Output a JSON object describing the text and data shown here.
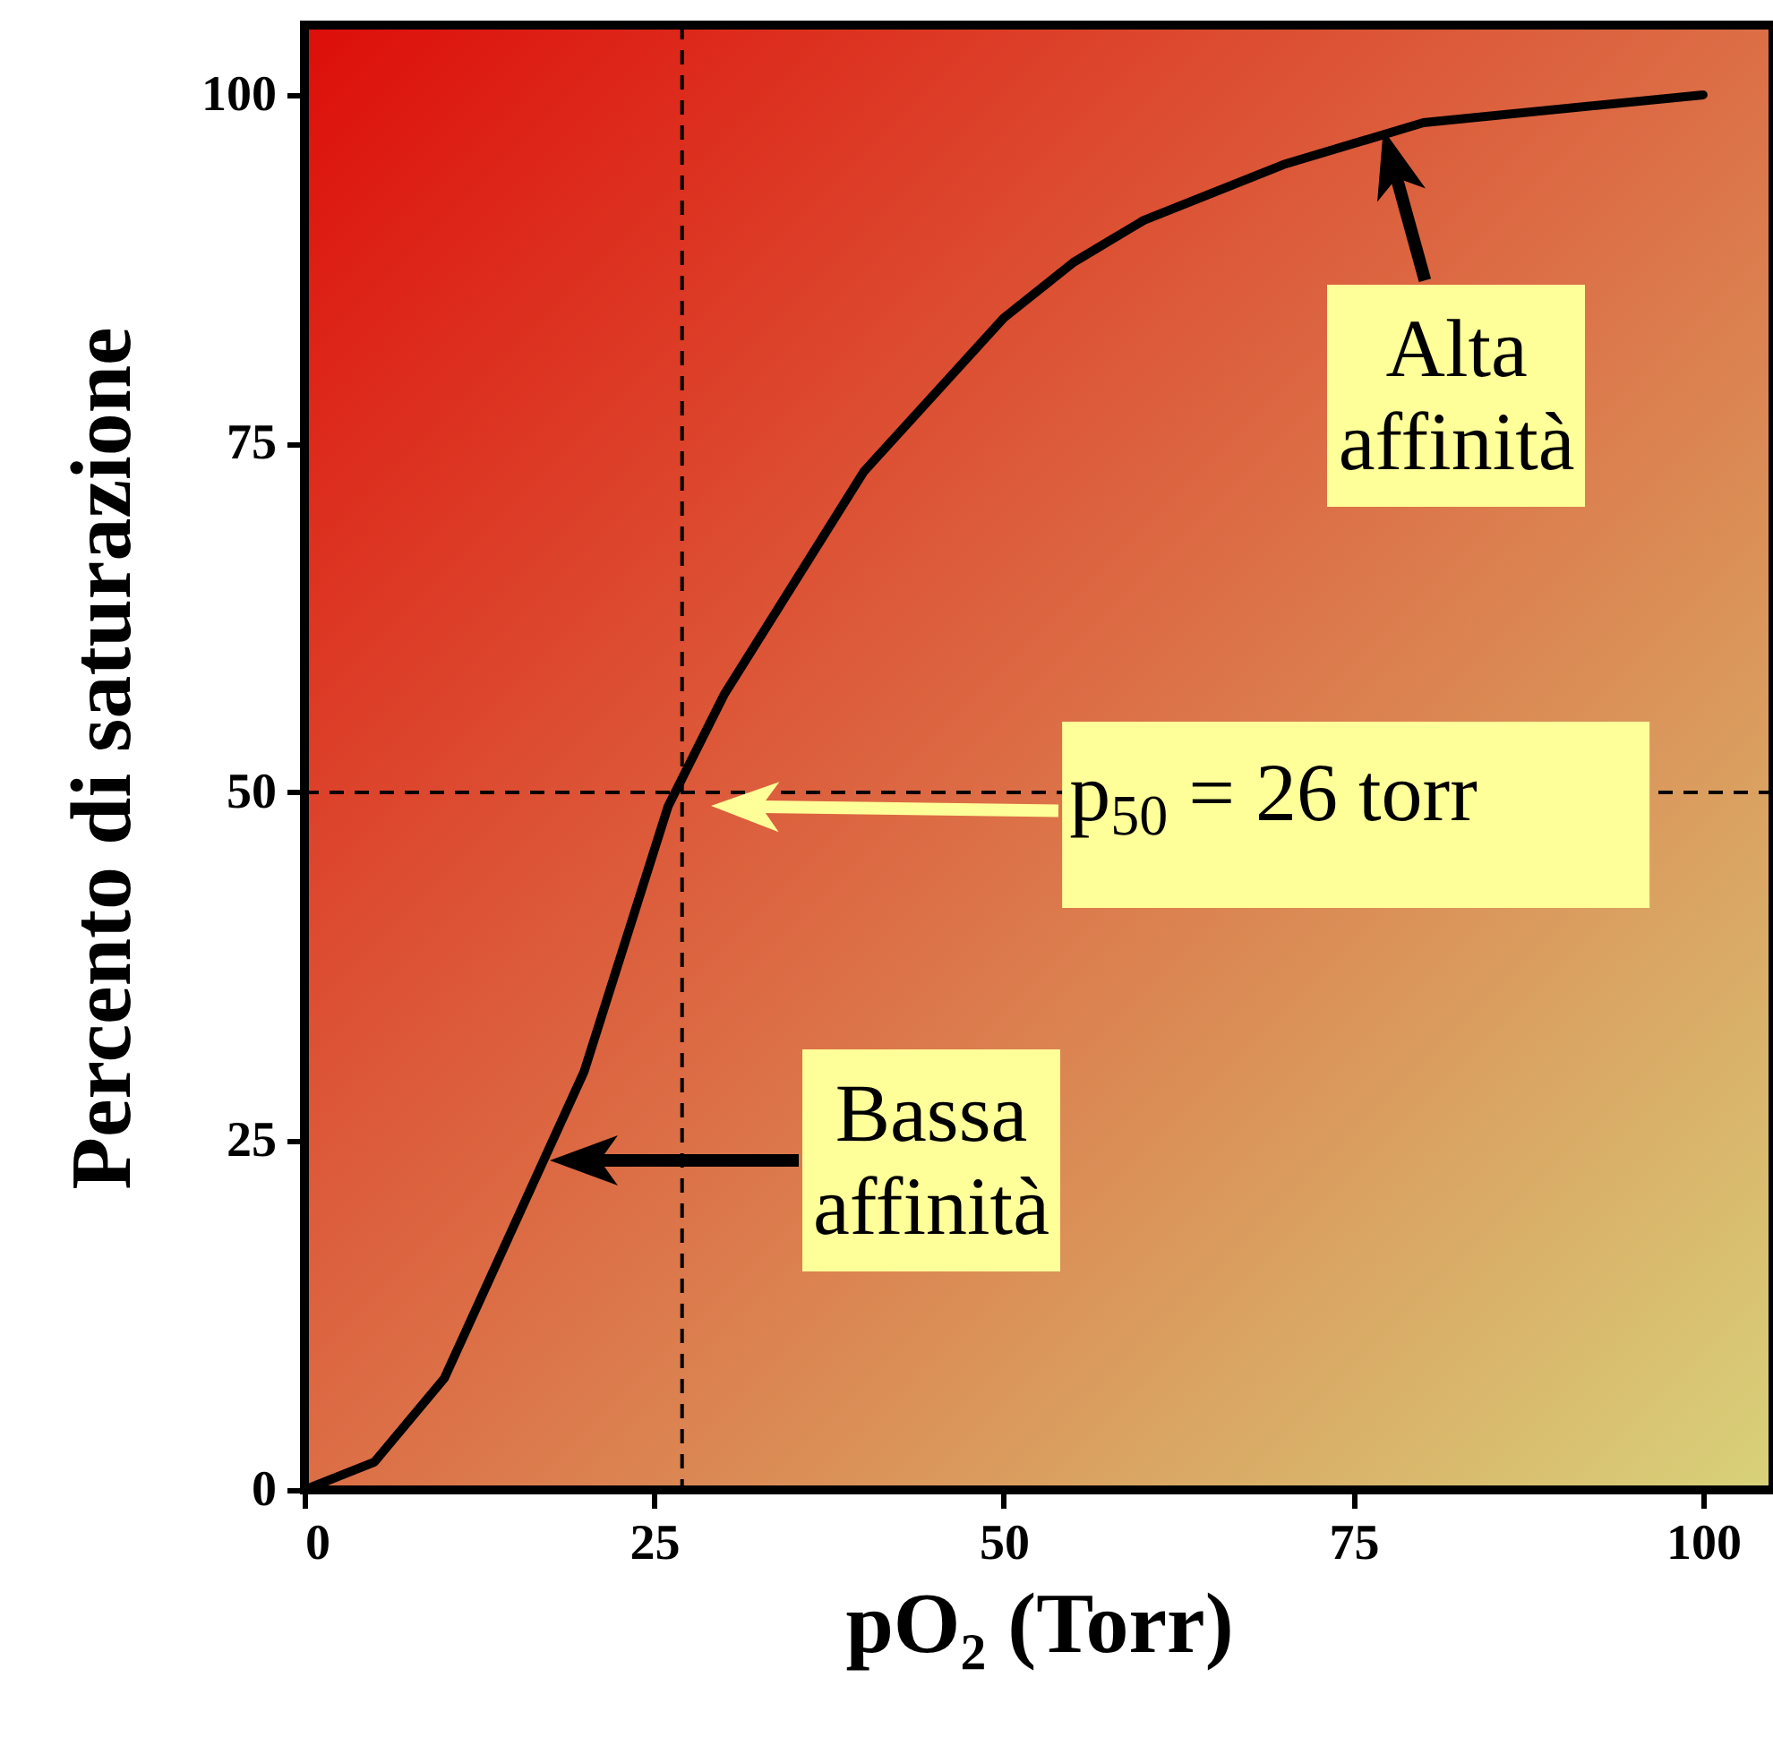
{
  "chart_data": {
    "type": "line",
    "xlabel": "pO₂ (Torr)",
    "ylabel": "Percento di saturazione",
    "x": [
      0,
      5,
      10,
      15,
      20,
      26,
      30,
      40,
      50,
      55,
      60,
      70,
      80,
      100
    ],
    "series": [
      {
        "color": "#000000",
        "values": [
          0,
          2,
          8,
          19,
          30,
          49,
          57,
          73,
          84,
          88,
          91,
          95,
          98,
          100
        ]
      }
    ],
    "xlim": [
      0,
      105
    ],
    "xticks": [
      0,
      25,
      50,
      75,
      100
    ],
    "ylim": [
      0,
      105
    ],
    "yticks": [
      0,
      25,
      50,
      75,
      100
    ],
    "grid": false,
    "marker": "none",
    "line_style": "solid",
    "ref_lines": [
      {
        "axis": "x",
        "value": 27,
        "color": "#000000",
        "line_style": "dashed"
      },
      {
        "axis": "y",
        "value": 50,
        "color": "#000000",
        "line_style": "dashed"
      }
    ],
    "annotations": [
      {
        "text": "Alta affinità",
        "x": 77,
        "y": 98
      },
      "Bassa affinità",
      "p$_{50}$ = 26 torr"
    ]
  }
}
